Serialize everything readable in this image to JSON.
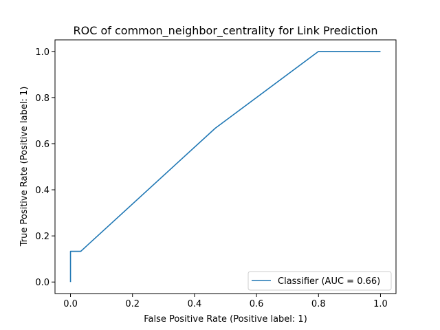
{
  "chart_data": {
    "type": "line",
    "title": "ROC of common_neighbor_centrality for Link Prediction",
    "xlabel": "False Positive Rate (Positive label: 1)",
    "ylabel": "True Positive Rate (Positive label: 1)",
    "xlim": [
      -0.05,
      1.05
    ],
    "ylim": [
      -0.05,
      1.05
    ],
    "xticks": [
      0.0,
      0.2,
      0.4,
      0.6,
      0.8,
      1.0
    ],
    "yticks": [
      0.0,
      0.2,
      0.4,
      0.6,
      0.8,
      1.0
    ],
    "xtick_labels": [
      "0.0",
      "0.2",
      "0.4",
      "0.6",
      "0.8",
      "1.0"
    ],
    "ytick_labels": [
      "0.0",
      "0.2",
      "0.4",
      "0.6",
      "0.8",
      "1.0"
    ],
    "grid": false,
    "legend_position": "lower-right",
    "series": [
      {
        "name": "Classifier (AUC = 0.66)",
        "color": "#1f77b4",
        "x": [
          0.0,
          0.0,
          0.033,
          0.467,
          0.8,
          1.0
        ],
        "y": [
          0.0,
          0.133,
          0.133,
          0.667,
          1.0,
          1.0
        ]
      }
    ]
  }
}
